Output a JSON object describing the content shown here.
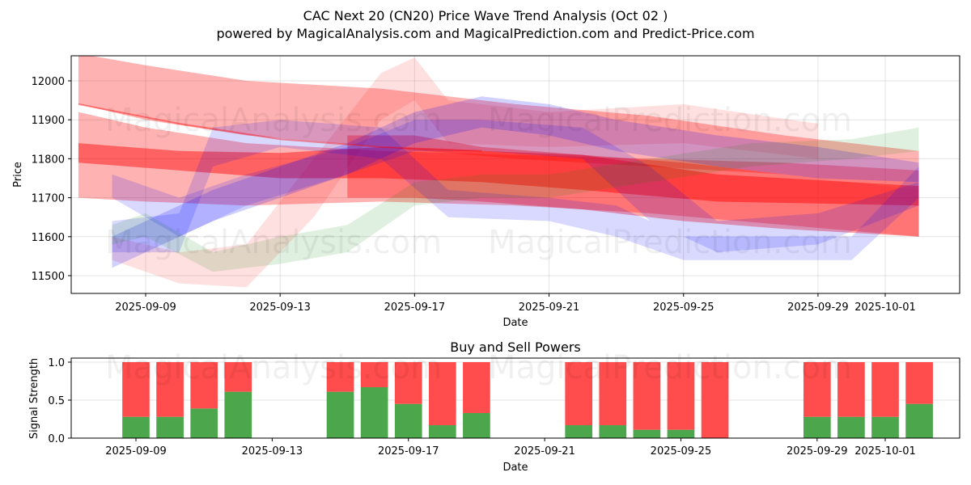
{
  "header": {
    "title": "CAC Next 20 (CN20) Price Wave Trend Analysis (Oct 02 )",
    "subtitle": "powered by MagicalAnalysis.com and MagicalPrediction.com and Predict-Price.com"
  },
  "watermarks": [
    "MagicalAnalysis.com",
    "MagicalPrediction.com"
  ],
  "chart_data": [
    {
      "type": "area",
      "title": "",
      "xlabel": "Date",
      "ylabel": "Price",
      "ylim": [
        11455,
        12065
      ],
      "xlim": [
        "2025-09-06",
        "2025-10-04"
      ],
      "yticks": [
        11500,
        11600,
        11700,
        11800,
        11900,
        12000
      ],
      "xticks": [
        "2025-09-09",
        "2025-09-13",
        "2025-09-17",
        "2025-09-21",
        "2025-09-25",
        "2025-09-29",
        "2025-10-01"
      ],
      "grid": true,
      "colors": {
        "red": "#ff0000",
        "blue": "#0000ff",
        "green": "#008000"
      },
      "bands": [
        {
          "color": "red",
          "opacity": 0.3,
          "x": [
            "2025-09-07",
            "2025-09-09",
            "2025-09-12",
            "2025-09-16",
            "2025-09-20",
            "2025-09-24",
            "2025-09-28",
            "2025-10-02"
          ],
          "upper": [
            12070,
            12040,
            12000,
            11980,
            11940,
            11910,
            11860,
            11820
          ],
          "lower": [
            11940,
            11900,
            11860,
            11830,
            11800,
            11780,
            11760,
            11720
          ]
        },
        {
          "color": "red",
          "opacity": 0.3,
          "x": [
            "2025-09-07",
            "2025-09-09",
            "2025-09-12",
            "2025-09-16",
            "2025-09-20",
            "2025-09-24",
            "2025-09-28",
            "2025-10-02"
          ],
          "upper": [
            11920,
            11880,
            11840,
            11820,
            11810,
            11800,
            11790,
            11770
          ],
          "lower": [
            11700,
            11690,
            11680,
            11690,
            11680,
            11660,
            11630,
            11600
          ]
        },
        {
          "color": "red",
          "opacity": 0.45,
          "x": [
            "2025-09-07",
            "2025-09-10",
            "2025-09-13",
            "2025-09-16",
            "2025-09-19",
            "2025-09-22",
            "2025-09-26",
            "2025-10-02"
          ],
          "upper": [
            11840,
            11820,
            11815,
            11830,
            11820,
            11810,
            11760,
            11730
          ],
          "lower": [
            11790,
            11770,
            11750,
            11750,
            11740,
            11720,
            11690,
            11680
          ]
        },
        {
          "color": "red",
          "opacity": 0.35,
          "x": [
            "2025-09-15",
            "2025-09-17",
            "2025-09-19",
            "2025-09-22",
            "2025-09-25",
            "2025-09-28",
            "2025-10-02"
          ],
          "upper": [
            11860,
            11860,
            11830,
            11810,
            11790,
            11760,
            11720
          ],
          "lower": [
            11700,
            11700,
            11690,
            11670,
            11640,
            11620,
            11600
          ]
        },
        {
          "color": "red",
          "opacity": 0.12,
          "x": [
            "2025-09-08",
            "2025-09-10",
            "2025-09-12",
            "2025-09-14",
            "2025-09-16",
            "2025-09-17",
            "2025-09-18",
            "2025-09-21",
            "2025-09-25",
            "2025-09-29"
          ],
          "upper": [
            11600,
            11560,
            11580,
            11800,
            12020,
            12060,
            11950,
            11920,
            11940,
            11890
          ],
          "lower": [
            11540,
            11480,
            11470,
            11650,
            11900,
            11950,
            11840,
            11830,
            11840,
            11800
          ]
        },
        {
          "color": "blue",
          "opacity": 0.18,
          "x": [
            "2025-09-08",
            "2025-09-09",
            "2025-09-11",
            "2025-09-13",
            "2025-09-15",
            "2025-09-17",
            "2025-09-19",
            "2025-09-21",
            "2025-09-23",
            "2025-09-26",
            "2025-09-29",
            "2025-10-02"
          ],
          "upper": [
            11600,
            11640,
            11720,
            11780,
            11840,
            11920,
            11960,
            11940,
            11900,
            11860,
            11830,
            11790
          ],
          "lower": [
            11520,
            11560,
            11640,
            11700,
            11760,
            11840,
            11880,
            11860,
            11820,
            11780,
            11750,
            11740
          ]
        },
        {
          "color": "blue",
          "opacity": 0.15,
          "x": [
            "2025-09-08",
            "2025-09-10",
            "2025-09-11",
            "2025-09-13",
            "2025-09-16",
            "2025-09-18",
            "2025-09-21",
            "2025-09-23",
            "2025-09-25",
            "2025-09-28",
            "2025-09-30",
            "2025-10-02"
          ],
          "upper": [
            11640,
            11660,
            11880,
            11900,
            11880,
            11720,
            11700,
            11680,
            11600,
            11600,
            11600,
            11780
          ],
          "lower": [
            11560,
            11560,
            11780,
            11830,
            11800,
            11650,
            11640,
            11600,
            11540,
            11540,
            11540,
            11700
          ]
        },
        {
          "color": "blue",
          "opacity": 0.15,
          "x": [
            "2025-09-08",
            "2025-09-10",
            "2025-09-12",
            "2025-09-15",
            "2025-09-17",
            "2025-09-19",
            "2025-09-22",
            "2025-09-24",
            "2025-09-26",
            "2025-09-29",
            "2025-10-02"
          ],
          "upper": [
            11760,
            11700,
            11760,
            11830,
            11900,
            11900,
            11880,
            11780,
            11640,
            11660,
            11740
          ],
          "lower": [
            11700,
            11600,
            11680,
            11760,
            11820,
            11820,
            11800,
            11640,
            11560,
            11580,
            11680
          ]
        },
        {
          "color": "green",
          "opacity": 0.12,
          "x": [
            "2025-09-08",
            "2025-09-09",
            "2025-09-11",
            "2025-09-13",
            "2025-09-15",
            "2025-09-17",
            "2025-09-19",
            "2025-09-21",
            "2025-09-24",
            "2025-09-27",
            "2025-09-30",
            "2025-10-02"
          ],
          "upper": [
            11630,
            11660,
            11560,
            11600,
            11630,
            11740,
            11760,
            11760,
            11800,
            11840,
            11850,
            11880
          ],
          "lower": [
            11580,
            11600,
            11510,
            11530,
            11560,
            11680,
            11700,
            11700,
            11740,
            11780,
            11800,
            11820
          ]
        }
      ],
      "thin_line": {
        "color": "red",
        "x": [
          "2025-09-07",
          "2025-09-10",
          "2025-09-13",
          "2025-09-16",
          "2025-09-19"
        ],
        "y": [
          11940,
          11890,
          11850,
          11830,
          11820
        ]
      }
    },
    {
      "type": "bar",
      "title": "Buy and Sell Powers",
      "xlabel": "Date",
      "ylabel": "Signal Strength",
      "ylim": [
        0,
        1.05
      ],
      "yticks": [
        "0.0",
        "0.5",
        "1.0"
      ],
      "xticks": [
        "2025-09-09",
        "2025-09-13",
        "2025-09-17",
        "2025-09-21",
        "2025-09-25",
        "2025-09-29",
        "2025-10-01"
      ],
      "grid": true,
      "colors": {
        "buy": "#4ca64c",
        "sell": "#ff4c4c"
      },
      "categories": [
        "2025-09-09",
        "2025-09-10",
        "2025-09-11",
        "2025-09-12",
        "2025-09-15",
        "2025-09-16",
        "2025-09-17",
        "2025-09-18",
        "2025-09-19",
        "2025-09-22",
        "2025-09-23",
        "2025-09-24",
        "2025-09-25",
        "2025-09-26",
        "2025-09-29",
        "2025-09-30",
        "2025-10-01",
        "2025-10-02"
      ],
      "series": [
        {
          "name": "Buy",
          "values": [
            0.28,
            0.28,
            0.39,
            0.61,
            0.61,
            0.67,
            0.45,
            0.17,
            0.33,
            0.17,
            0.17,
            0.11,
            0.11,
            0.0,
            0.28,
            0.28,
            0.28,
            0.45
          ]
        },
        {
          "name": "Sell",
          "values": [
            0.72,
            0.72,
            0.61,
            0.39,
            0.39,
            0.33,
            0.55,
            0.83,
            0.67,
            0.83,
            0.83,
            0.89,
            0.89,
            1.0,
            0.72,
            0.72,
            0.72,
            0.55
          ]
        }
      ]
    }
  ]
}
